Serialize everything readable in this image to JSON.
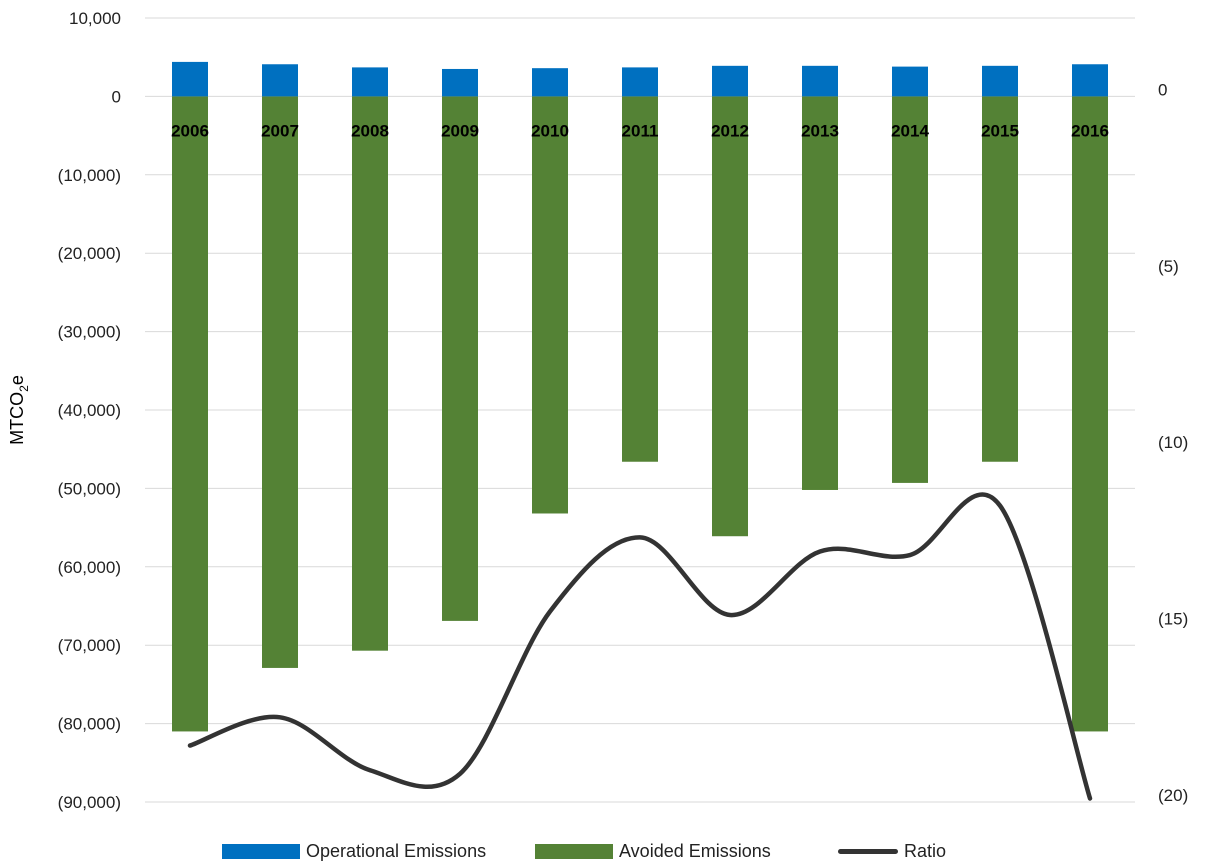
{
  "chart_data": {
    "type": "bar",
    "categories": [
      "2006",
      "2007",
      "2008",
      "2009",
      "2010",
      "2011",
      "2012",
      "2013",
      "2014",
      "2015",
      "2016"
    ],
    "series": [
      {
        "name": "Operational Emissions",
        "axis": "left",
        "color": "#0070C0",
        "values": [
          4400,
          4100,
          3700,
          3500,
          3600,
          3700,
          3900,
          3900,
          3800,
          3900,
          4100
        ]
      },
      {
        "name": "Avoided Emissions",
        "axis": "left",
        "color": "#548235",
        "values": [
          -81000,
          -72900,
          -70700,
          -66900,
          -53200,
          -46600,
          -56100,
          -50200,
          -49300,
          -46600,
          -81000
        ]
      },
      {
        "name": "Ratio",
        "axis": "right",
        "type": "line",
        "smooth": true,
        "color": "#333333",
        "values": [
          -18.4,
          -17.6,
          -19.1,
          -19.2,
          -14.6,
          -12.5,
          -14.7,
          -12.9,
          -13.0,
          -11.6,
          -19.9
        ]
      }
    ],
    "ylabel": "MTCO₂e",
    "ylabel_parts": {
      "prefix": "MTCO",
      "sub": "2",
      "suffix": "e"
    },
    "ylim": [
      -90000,
      10000
    ],
    "y_ticks": [
      10000,
      0,
      -10000,
      -20000,
      -30000,
      -40000,
      -50000,
      -60000,
      -70000,
      -80000,
      -90000
    ],
    "y_tick_labels": [
      "10,000",
      "0",
      "(10,000)",
      "(20,000)",
      "(30,000)",
      "(40,000)",
      "(50,000)",
      "(60,000)",
      "(70,000)",
      "(80,000)",
      "(90,000)"
    ],
    "y2lim": [
      -20,
      2.22
    ],
    "y2_ticks": [
      0,
      -5,
      -10,
      -15,
      -20
    ],
    "y2_tick_labels": [
      "0",
      "(5)",
      "(10)",
      "(15)",
      "(20)"
    ],
    "grid": true,
    "legend_position": "bottom"
  }
}
